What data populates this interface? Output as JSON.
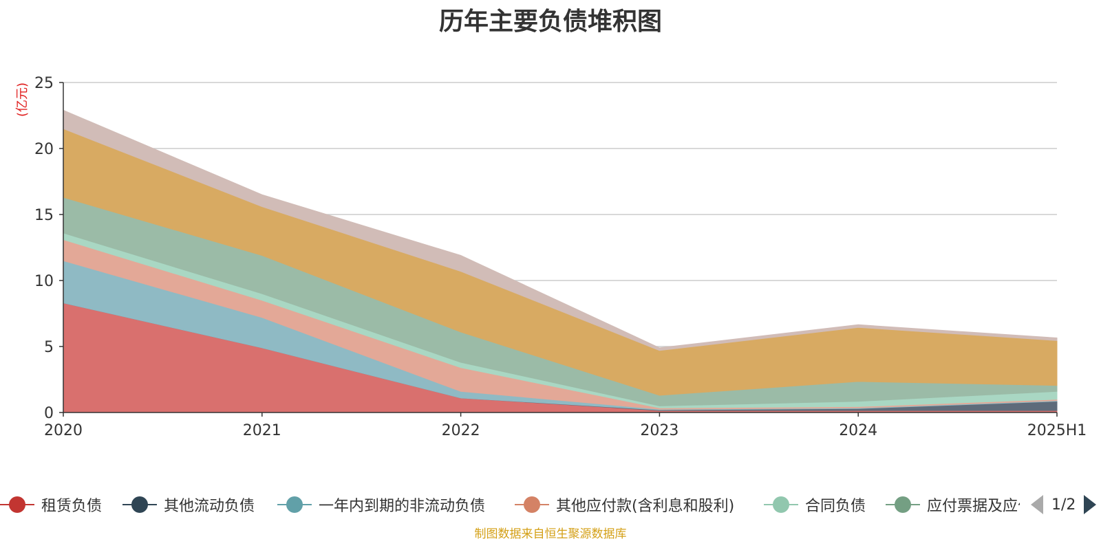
{
  "chart_data": {
    "type": "area",
    "stacked": true,
    "title": "历年主要负债堆积图",
    "ylabel": "(亿元)",
    "xlabel": "",
    "categories": [
      "2020",
      "2021",
      "2022",
      "2023",
      "2024",
      "2025H1"
    ],
    "ylim": [
      0,
      25
    ],
    "yticks": [
      0,
      5,
      10,
      15,
      20,
      25
    ],
    "grid": true,
    "legend_position": "bottom",
    "series": [
      {
        "name": "租赁负债",
        "color": "#d9706e",
        "values": [
          8.3,
          4.9,
          1.1,
          0.15,
          0.15,
          0.15
        ]
      },
      {
        "name": "其他流动负债",
        "color": "#5e6b7a",
        "values": [
          0,
          0,
          0,
          0.05,
          0.15,
          0.7
        ]
      },
      {
        "name": "一年内到期的非流动负债",
        "color": "#8fbac4",
        "values": [
          3.2,
          2.3,
          0.5,
          0.05,
          0.05,
          0.05
        ]
      },
      {
        "name": "其他应付款(含利息和股利)",
        "color": "#e3a897",
        "values": [
          1.6,
          1.3,
          1.8,
          0.1,
          0.1,
          0.1
        ]
      },
      {
        "name": "合同负债",
        "color": "#a9d7c3",
        "values": [
          0.5,
          0.5,
          0.4,
          0.15,
          0.4,
          0.6
        ]
      },
      {
        "name": "应付票据及应付账款",
        "color": "#9bbba7",
        "values": [
          2.7,
          2.9,
          2.3,
          0.8,
          1.5,
          0.45
        ]
      },
      {
        "name": "",
        "color": "#d8aa62",
        "values": [
          5.2,
          3.7,
          4.6,
          3.4,
          4.1,
          3.4
        ]
      },
      {
        "name": "",
        "color": "#d1bcb7",
        "values": [
          1.4,
          0.9,
          1.2,
          0.2,
          0.2,
          0.2
        ]
      }
    ]
  },
  "legend": {
    "items": [
      {
        "label": "租赁负债",
        "dot_color": "#c23531",
        "line_color": "#c23531"
      },
      {
        "label": "其他流动负债",
        "dot_color": "#2f4554",
        "line_color": "#2f4554"
      },
      {
        "label": "一年内到期的非流动负债",
        "dot_color": "#61a0a8",
        "line_color": "#61a0a8"
      },
      {
        "label": "其他应付款(含利息和股利)",
        "dot_color": "#d48265",
        "line_color": "#d48265"
      },
      {
        "label": "合同负债",
        "dot_color": "#91c7ae",
        "line_color": "#91c7ae"
      },
      {
        "label": "应付票据及应付账款",
        "dot_color": "#749f83",
        "line_color": "#749f83"
      }
    ],
    "page_indicator": "1/2"
  },
  "footer": {
    "source": "制图数据来自恒生聚源数据库"
  },
  "colors": {
    "axis_label": "#333333",
    "unit_label": "#e02020",
    "grid": "#cccccc",
    "axis_line": "#333333"
  }
}
